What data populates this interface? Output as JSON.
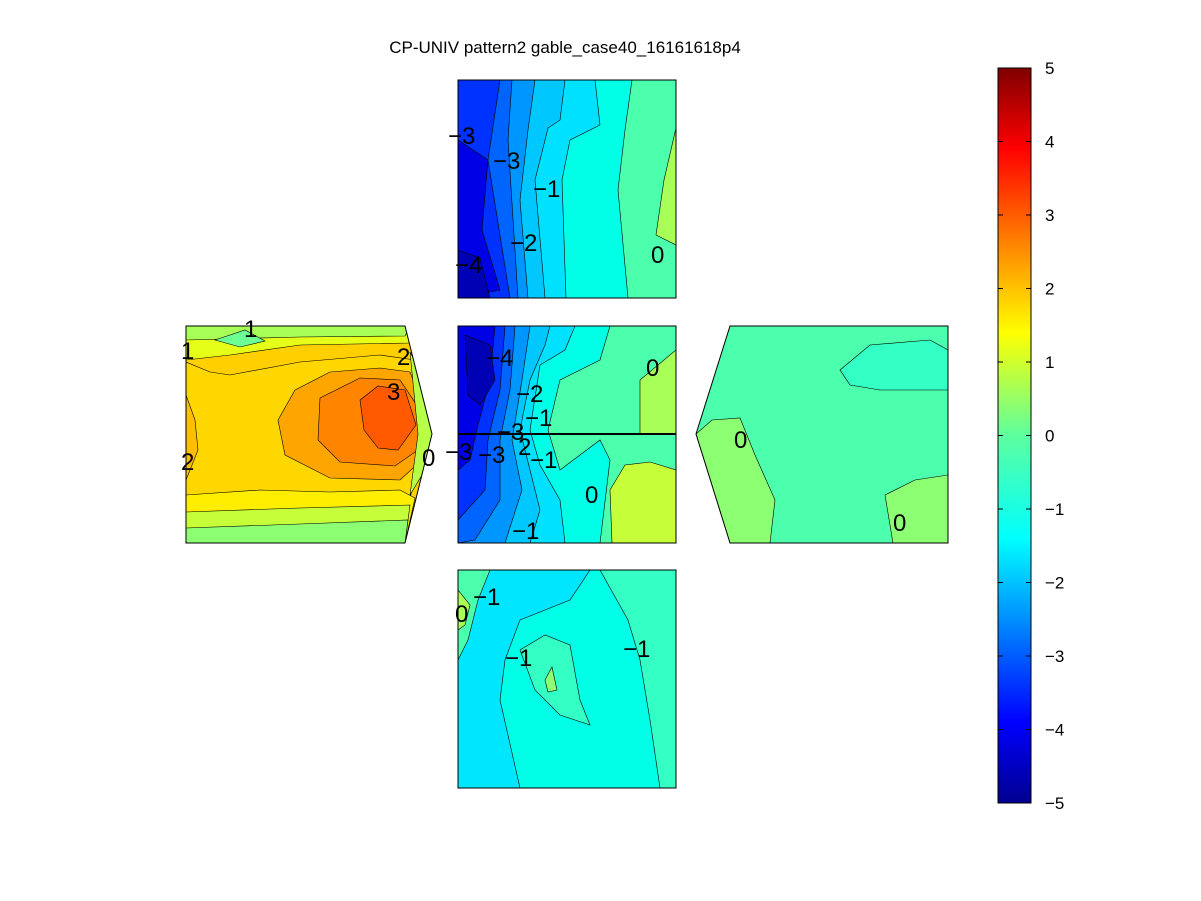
{
  "chart_data": {
    "type": "heatmap",
    "title": "CP-UNIV pattern2 gable_case40_16161618p4",
    "colormap": "jet",
    "colorbar": {
      "min": -5,
      "max": 5,
      "ticks": [
        "5",
        "4",
        "3",
        "2",
        "1",
        "0",
        "−1",
        "−2",
        "−3",
        "−4",
        "−5"
      ],
      "tick_values": [
        5,
        4,
        3,
        2,
        1,
        0,
        -1,
        -2,
        -3,
        -4,
        -5
      ]
    },
    "panels": [
      {
        "name": "top",
        "contour_labels": [
          "−3",
          "−3",
          "−1",
          "−2",
          "−4",
          "0"
        ]
      },
      {
        "name": "left",
        "contour_labels": [
          "1",
          "1",
          "2",
          "3",
          "2",
          "0"
        ]
      },
      {
        "name": "center",
        "contour_labels": [
          "−4",
          "0",
          "−2",
          "−1",
          "−3",
          "−3",
          "−3",
          "2",
          "−1",
          "0",
          "−1"
        ]
      },
      {
        "name": "right",
        "contour_labels": [
          "0",
          "0"
        ]
      },
      {
        "name": "bottom",
        "contour_labels": [
          "0",
          "−1",
          "−1",
          "−1"
        ]
      }
    ]
  }
}
